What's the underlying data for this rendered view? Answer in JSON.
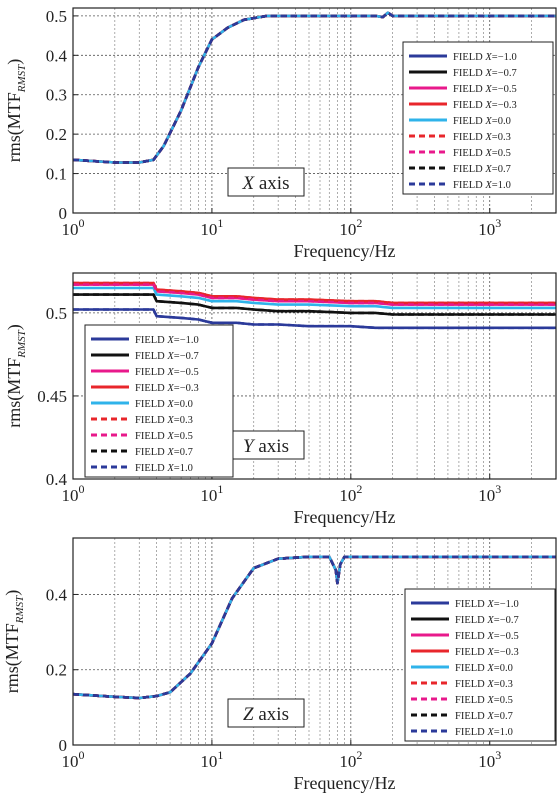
{
  "legend_entries": [
    {
      "label": "FIELD X=−1.0",
      "color": "#2b3a9a",
      "dash": "solid"
    },
    {
      "label": "FIELD X=−0.7",
      "color": "#111111",
      "dash": "solid"
    },
    {
      "label": "FIELD X=−0.5",
      "color": "#e8198b",
      "dash": "solid"
    },
    {
      "label": "FIELD X=−0.3",
      "color": "#e8262b",
      "dash": "solid"
    },
    {
      "label": "FIELD X=0.0",
      "color": "#2fb3ea",
      "dash": "solid"
    },
    {
      "label": "FIELD X=0.3",
      "color": "#e8262b",
      "dash": "dashed"
    },
    {
      "label": "FIELD X=0.5",
      "color": "#e8198b",
      "dash": "dashed"
    },
    {
      "label": "FIELD X=0.7",
      "color": "#111111",
      "dash": "dashed"
    },
    {
      "label": "FIELD X=1.0",
      "color": "#2b3a9a",
      "dash": "dashed"
    }
  ],
  "chart_data": [
    {
      "type": "line",
      "title": "",
      "annotation": "X axis",
      "xlabel": "Frequency/Hz",
      "ylabel": "rms(MTF_RMST)",
      "xscale": "log",
      "xlim": [
        1,
        3000
      ],
      "ylim": [
        0,
        0.52
      ],
      "xticks": [
        1,
        10,
        100,
        1000
      ],
      "xtick_labels": [
        "10^0",
        "10^1",
        "10^2",
        "10^3"
      ],
      "yticks": [
        0,
        0.1,
        0.2,
        0.3,
        0.4,
        0.5
      ],
      "ytick_labels": [
        "0",
        "0.1",
        "0.2",
        "0.3",
        "0.4",
        "0.5"
      ],
      "grid": true,
      "legend_position": "right",
      "x": [
        1,
        2,
        3,
        3.8,
        4.5,
        6,
        8,
        10,
        13,
        17,
        25,
        40,
        100,
        150,
        170,
        185,
        200,
        300,
        1000,
        3000
      ],
      "series": [
        {
          "name": "FIELD X=−1.0",
          "values": [
            0.135,
            0.128,
            0.128,
            0.135,
            0.17,
            0.26,
            0.37,
            0.44,
            0.47,
            0.49,
            0.5,
            0.5,
            0.5,
            0.5,
            0.497,
            0.508,
            0.5,
            0.5,
            0.5,
            0.5
          ]
        },
        {
          "name": "FIELD X=−0.7",
          "values": [
            0.135,
            0.128,
            0.128,
            0.135,
            0.17,
            0.26,
            0.37,
            0.44,
            0.47,
            0.49,
            0.5,
            0.5,
            0.5,
            0.5,
            0.497,
            0.508,
            0.5,
            0.5,
            0.5,
            0.5
          ]
        },
        {
          "name": "FIELD X=−0.5",
          "values": [
            0.135,
            0.128,
            0.128,
            0.135,
            0.17,
            0.26,
            0.37,
            0.44,
            0.47,
            0.49,
            0.5,
            0.5,
            0.5,
            0.5,
            0.497,
            0.508,
            0.5,
            0.5,
            0.5,
            0.5
          ]
        },
        {
          "name": "FIELD X=−0.3",
          "values": [
            0.135,
            0.128,
            0.128,
            0.135,
            0.17,
            0.26,
            0.37,
            0.44,
            0.47,
            0.49,
            0.5,
            0.5,
            0.5,
            0.5,
            0.497,
            0.508,
            0.5,
            0.5,
            0.5,
            0.5
          ]
        },
        {
          "name": "FIELD X=0.0",
          "values": [
            0.135,
            0.128,
            0.128,
            0.135,
            0.17,
            0.26,
            0.37,
            0.44,
            0.47,
            0.49,
            0.5,
            0.5,
            0.5,
            0.5,
            0.497,
            0.508,
            0.5,
            0.5,
            0.5,
            0.5
          ]
        },
        {
          "name": "FIELD X=0.3",
          "values": [
            0.135,
            0.128,
            0.128,
            0.135,
            0.17,
            0.26,
            0.37,
            0.44,
            0.47,
            0.49,
            0.5,
            0.5,
            0.5,
            0.5,
            0.497,
            0.508,
            0.5,
            0.5,
            0.5,
            0.5
          ]
        },
        {
          "name": "FIELD X=0.5",
          "values": [
            0.135,
            0.128,
            0.128,
            0.135,
            0.17,
            0.26,
            0.37,
            0.44,
            0.47,
            0.49,
            0.5,
            0.5,
            0.5,
            0.5,
            0.497,
            0.508,
            0.5,
            0.5,
            0.5,
            0.5
          ]
        },
        {
          "name": "FIELD X=0.7",
          "values": [
            0.135,
            0.128,
            0.128,
            0.135,
            0.17,
            0.26,
            0.37,
            0.44,
            0.47,
            0.49,
            0.5,
            0.5,
            0.5,
            0.5,
            0.497,
            0.508,
            0.5,
            0.5,
            0.5,
            0.5
          ]
        },
        {
          "name": "FIELD X=1.0",
          "values": [
            0.135,
            0.128,
            0.128,
            0.135,
            0.17,
            0.26,
            0.37,
            0.44,
            0.47,
            0.49,
            0.5,
            0.5,
            0.5,
            0.5,
            0.497,
            0.508,
            0.5,
            0.5,
            0.5,
            0.5
          ]
        }
      ]
    },
    {
      "type": "line",
      "title": "",
      "annotation": "Y axis",
      "xlabel": "Frequency/Hz",
      "ylabel": "rms(MTF_RMST)",
      "xscale": "log",
      "xlim": [
        1,
        3000
      ],
      "ylim": [
        0.4,
        0.524
      ],
      "xticks": [
        1,
        10,
        100,
        1000
      ],
      "xtick_labels": [
        "10^0",
        "10^1",
        "10^2",
        "10^3"
      ],
      "yticks": [
        0.4,
        0.45,
        0.5
      ],
      "ytick_labels": [
        "0.4",
        "0.45",
        "0.5"
      ],
      "grid": true,
      "legend_position": "left",
      "x": [
        1,
        3,
        3.8,
        4,
        6,
        8,
        10,
        15,
        20,
        30,
        50,
        100,
        150,
        200,
        300,
        1000,
        3000
      ],
      "series": [
        {
          "name": "FIELD X=−1.0",
          "values": [
            0.502,
            0.502,
            0.502,
            0.498,
            0.497,
            0.496,
            0.494,
            0.494,
            0.493,
            0.493,
            0.492,
            0.492,
            0.491,
            0.491,
            0.491,
            0.491,
            0.491
          ]
        },
        {
          "name": "FIELD X=−0.7",
          "values": [
            0.511,
            0.511,
            0.511,
            0.507,
            0.506,
            0.505,
            0.503,
            0.503,
            0.502,
            0.501,
            0.501,
            0.5,
            0.5,
            0.499,
            0.499,
            0.499,
            0.499
          ]
        },
        {
          "name": "FIELD X=−0.5",
          "values": [
            0.517,
            0.517,
            0.517,
            0.513,
            0.512,
            0.511,
            0.509,
            0.509,
            0.508,
            0.507,
            0.507,
            0.506,
            0.506,
            0.505,
            0.505,
            0.505,
            0.505
          ]
        },
        {
          "name": "FIELD X=−0.3",
          "values": [
            0.518,
            0.518,
            0.518,
            0.514,
            0.513,
            0.512,
            0.51,
            0.51,
            0.509,
            0.508,
            0.508,
            0.507,
            0.507,
            0.506,
            0.506,
            0.506,
            0.506
          ]
        },
        {
          "name": "FIELD X=0.0",
          "values": [
            0.515,
            0.515,
            0.515,
            0.511,
            0.51,
            0.509,
            0.507,
            0.507,
            0.506,
            0.505,
            0.505,
            0.504,
            0.504,
            0.503,
            0.503,
            0.503,
            0.503
          ]
        },
        {
          "name": "FIELD X=0.3",
          "values": [
            0.518,
            0.518,
            0.518,
            0.514,
            0.513,
            0.512,
            0.51,
            0.51,
            0.509,
            0.508,
            0.508,
            0.507,
            0.507,
            0.506,
            0.506,
            0.506,
            0.506
          ]
        },
        {
          "name": "FIELD X=0.5",
          "values": [
            0.517,
            0.517,
            0.517,
            0.513,
            0.512,
            0.511,
            0.509,
            0.509,
            0.508,
            0.507,
            0.507,
            0.506,
            0.506,
            0.505,
            0.505,
            0.505,
            0.505
          ]
        },
        {
          "name": "FIELD X=0.7",
          "values": [
            0.511,
            0.511,
            0.511,
            0.507,
            0.506,
            0.505,
            0.503,
            0.503,
            0.502,
            0.501,
            0.501,
            0.5,
            0.5,
            0.499,
            0.499,
            0.499,
            0.499
          ]
        },
        {
          "name": "FIELD X=1.0",
          "values": [
            0.502,
            0.502,
            0.502,
            0.498,
            0.497,
            0.496,
            0.494,
            0.494,
            0.493,
            0.493,
            0.492,
            0.492,
            0.491,
            0.491,
            0.491,
            0.491,
            0.491
          ]
        }
      ]
    },
    {
      "type": "line",
      "title": "",
      "annotation": "Z axis",
      "xlabel": "Frequency/Hz",
      "ylabel": "rms(MTF_RMST)",
      "xscale": "log",
      "xlim": [
        1,
        3000
      ],
      "ylim": [
        0,
        0.55
      ],
      "xticks": [
        1,
        10,
        100,
        1000
      ],
      "xtick_labels": [
        "10^0",
        "10^1",
        "10^2",
        "10^3"
      ],
      "yticks": [
        0,
        0.2,
        0.4
      ],
      "ytick_labels": [
        "0",
        "0.2",
        "0.4"
      ],
      "grid": true,
      "legend_position": "right",
      "x": [
        1,
        2,
        3,
        4,
        5,
        7,
        10,
        14,
        20,
        30,
        50,
        70,
        78,
        80,
        84,
        90,
        100,
        200,
        1000,
        3000
      ],
      "series": [
        {
          "name": "FIELD X=−1.0",
          "values": [
            0.135,
            0.128,
            0.125,
            0.13,
            0.14,
            0.19,
            0.27,
            0.39,
            0.47,
            0.495,
            0.5,
            0.5,
            0.465,
            0.43,
            0.48,
            0.5,
            0.5,
            0.5,
            0.5,
            0.5
          ]
        },
        {
          "name": "FIELD X=−0.7",
          "values": [
            0.135,
            0.128,
            0.125,
            0.13,
            0.14,
            0.19,
            0.27,
            0.39,
            0.47,
            0.495,
            0.5,
            0.5,
            0.465,
            0.43,
            0.48,
            0.5,
            0.5,
            0.5,
            0.5,
            0.5
          ]
        },
        {
          "name": "FIELD X=−0.5",
          "values": [
            0.135,
            0.128,
            0.125,
            0.13,
            0.14,
            0.19,
            0.27,
            0.39,
            0.47,
            0.495,
            0.5,
            0.5,
            0.465,
            0.43,
            0.48,
            0.5,
            0.5,
            0.5,
            0.5,
            0.5
          ]
        },
        {
          "name": "FIELD X=−0.3",
          "values": [
            0.135,
            0.128,
            0.125,
            0.13,
            0.14,
            0.19,
            0.27,
            0.39,
            0.47,
            0.495,
            0.5,
            0.5,
            0.465,
            0.43,
            0.48,
            0.5,
            0.5,
            0.5,
            0.5,
            0.5
          ]
        },
        {
          "name": "FIELD X=0.0",
          "values": [
            0.135,
            0.128,
            0.125,
            0.13,
            0.14,
            0.19,
            0.27,
            0.39,
            0.47,
            0.495,
            0.5,
            0.5,
            0.465,
            0.43,
            0.48,
            0.5,
            0.5,
            0.5,
            0.5,
            0.5
          ]
        },
        {
          "name": "FIELD X=0.3",
          "values": [
            0.135,
            0.128,
            0.125,
            0.13,
            0.14,
            0.19,
            0.27,
            0.39,
            0.47,
            0.495,
            0.5,
            0.5,
            0.465,
            0.43,
            0.48,
            0.5,
            0.5,
            0.5,
            0.5,
            0.5
          ]
        },
        {
          "name": "FIELD X=0.5",
          "values": [
            0.135,
            0.128,
            0.125,
            0.13,
            0.14,
            0.19,
            0.27,
            0.39,
            0.47,
            0.495,
            0.5,
            0.5,
            0.465,
            0.43,
            0.48,
            0.5,
            0.5,
            0.5,
            0.5,
            0.5
          ]
        },
        {
          "name": "FIELD X=0.7",
          "values": [
            0.135,
            0.128,
            0.125,
            0.13,
            0.14,
            0.19,
            0.27,
            0.39,
            0.47,
            0.495,
            0.5,
            0.5,
            0.465,
            0.43,
            0.48,
            0.5,
            0.5,
            0.5,
            0.5,
            0.5
          ]
        },
        {
          "name": "FIELD X=1.0",
          "values": [
            0.135,
            0.128,
            0.125,
            0.13,
            0.14,
            0.19,
            0.27,
            0.39,
            0.47,
            0.495,
            0.5,
            0.5,
            0.465,
            0.43,
            0.48,
            0.5,
            0.5,
            0.5,
            0.5,
            0.5
          ]
        }
      ]
    }
  ]
}
